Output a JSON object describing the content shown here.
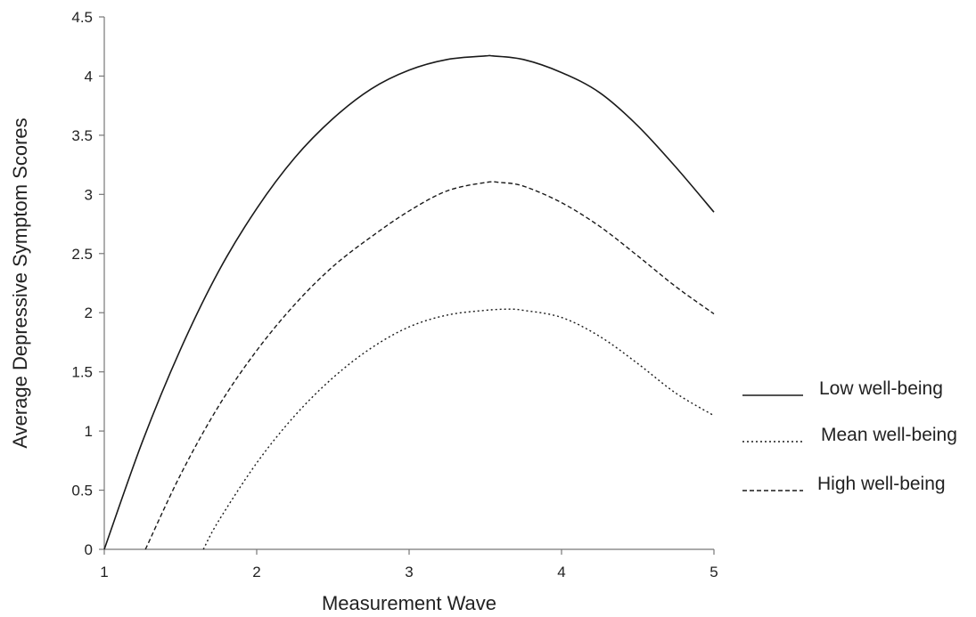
{
  "chart_data": {
    "type": "line",
    "title": "",
    "xlabel": "Measurement Wave",
    "ylabel": "Average Depressive Symptom Scores",
    "xlim": [
      1,
      5
    ],
    "ylim": [
      0,
      4.5
    ],
    "xticks": [
      "1",
      "2",
      "3",
      "4",
      "5"
    ],
    "yticks": [
      "0",
      "0.5",
      "1",
      "1.5",
      "2",
      "2.5",
      "3",
      "3.5",
      "4",
      "4.5"
    ],
    "grid": false,
    "legend_position": "right",
    "series": [
      {
        "name": "Low well-being",
        "line_style": "solid",
        "x": [
          1.0,
          1.25,
          1.5,
          1.75,
          2.0,
          2.25,
          2.5,
          2.75,
          3.0,
          3.25,
          3.5,
          3.55,
          3.75,
          4.0,
          4.25,
          4.5,
          4.75,
          5.0
        ],
        "y": [
          0.0,
          0.91,
          1.69,
          2.35,
          2.88,
          3.31,
          3.64,
          3.89,
          4.05,
          4.14,
          4.17,
          4.17,
          4.14,
          4.03,
          3.86,
          3.58,
          3.23,
          2.85
        ]
      },
      {
        "name": "Mean well-being",
        "line_style": "dotted",
        "x": [
          1.65,
          1.75,
          2.0,
          2.25,
          2.5,
          2.75,
          3.0,
          3.25,
          3.5,
          3.65,
          3.75,
          4.0,
          4.25,
          4.5,
          4.75,
          5.0
        ],
        "y": [
          0.0,
          0.24,
          0.73,
          1.13,
          1.45,
          1.7,
          1.88,
          1.98,
          2.02,
          2.03,
          2.02,
          1.96,
          1.8,
          1.57,
          1.32,
          1.13
        ]
      },
      {
        "name": "High well-being",
        "line_style": "dashed",
        "x": [
          1.27,
          1.5,
          1.75,
          2.0,
          2.25,
          2.5,
          2.75,
          3.0,
          3.25,
          3.5,
          3.6,
          3.75,
          4.0,
          4.25,
          4.5,
          4.75,
          5.0
        ],
        "y": [
          0.0,
          0.63,
          1.21,
          1.68,
          2.07,
          2.39,
          2.64,
          2.86,
          3.03,
          3.1,
          3.1,
          3.07,
          2.93,
          2.73,
          2.48,
          2.22,
          1.99
        ]
      }
    ]
  }
}
